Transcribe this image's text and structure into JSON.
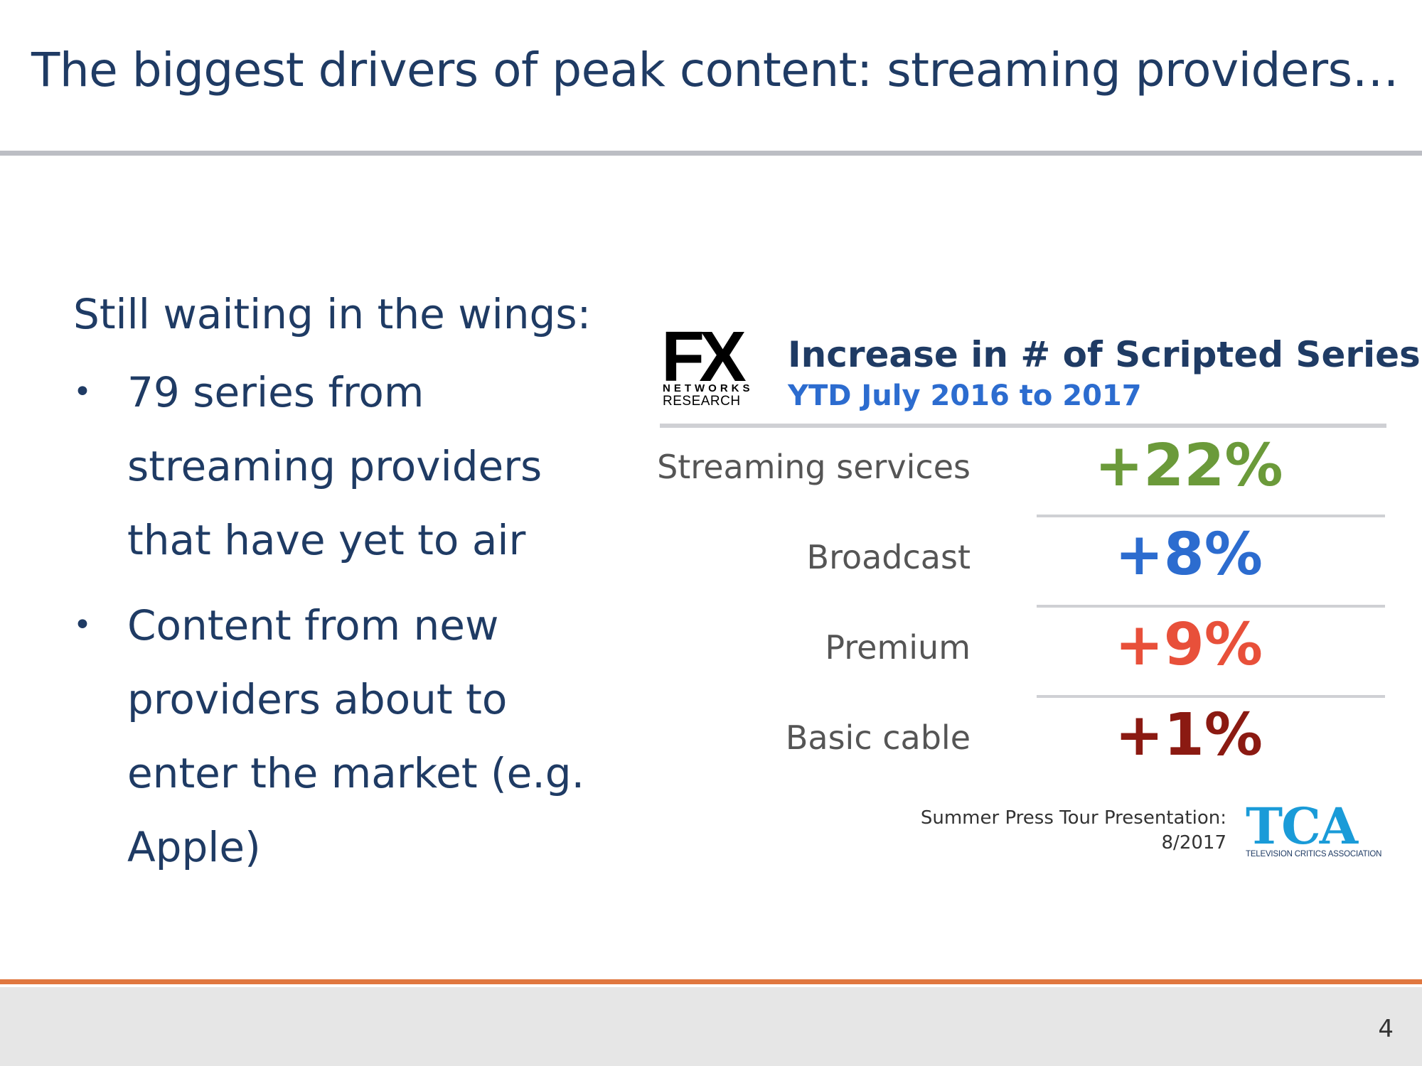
{
  "slide": {
    "title": "The biggest drivers of peak content: streaming providers…",
    "page_number": "4"
  },
  "left_panel": {
    "lead": "Still waiting in the wings:",
    "bullet_glyph": "•",
    "bullets": [
      "79 series from streaming providers that have yet to air",
      "Content from new providers about to enter the market (e.g. Apple)"
    ]
  },
  "fx_logo": {
    "mark": "FX",
    "line1": "NETWORKS",
    "line2": "RESEARCH"
  },
  "panel": {
    "title": "Increase in # of Scripted Series",
    "subtitle": "YTD July 2016 to 2017",
    "rows": [
      {
        "label": "Streaming services",
        "value": "+22%",
        "color": "#6b9a3a"
      },
      {
        "label": "Broadcast",
        "value": "+8%",
        "color": "#2c6ccf"
      },
      {
        "label": "Premium",
        "value": "+9%",
        "color": "#e8503a"
      },
      {
        "label": "Basic cable",
        "value": "+1%",
        "color": "#8b1a12"
      }
    ]
  },
  "source": {
    "line1": "Summer Press Tour Presentation:",
    "line2": "8/2017"
  },
  "tca_logo": {
    "mark": "TCA",
    "tagline": "TELEVISION CRITICS ASSOCIATION"
  }
}
